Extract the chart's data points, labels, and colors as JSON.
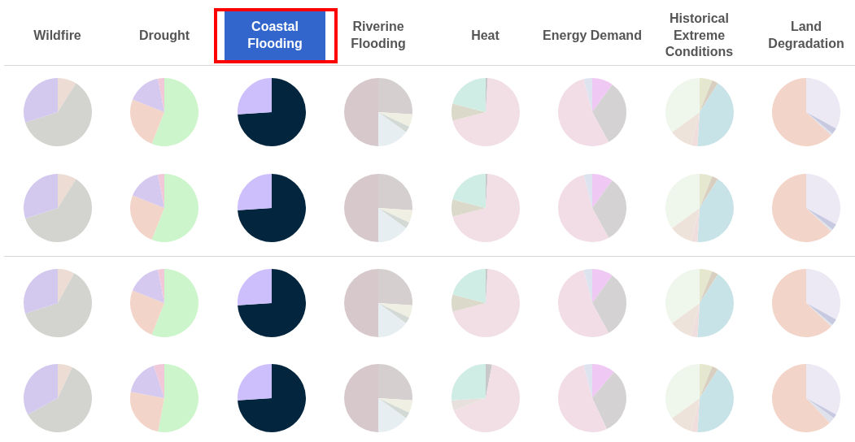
{
  "chart_data": [
    {
      "type": "pie",
      "title": "Wildfire",
      "categories": [
        null,
        null,
        null
      ],
      "values": [
        9,
        61,
        30
      ],
      "colors": [
        "#ecdcd4",
        "#d3d3cf",
        "#d3c9ef"
      ]
    },
    {
      "type": "pie",
      "title": "Drought",
      "categories": [
        null,
        null,
        null,
        null
      ],
      "values": [
        56,
        25,
        16,
        3
      ],
      "colors": [
        "#cdf5cb",
        "#f2d4c8",
        "#d6c9ef",
        "#f0c8d8"
      ]
    },
    {
      "type": "pie",
      "title": "Coastal Flooding",
      "categories": [
        null,
        null
      ],
      "values": [
        74,
        26
      ],
      "colors": [
        "#03263e",
        "#cdbefc"
      ]
    },
    {
      "type": "pie",
      "title": "Riverine Flooding",
      "categories": [
        null,
        null,
        null,
        null,
        null
      ],
      "values": [
        26,
        6,
        3,
        15,
        50
      ],
      "colors": [
        "#d5cfcf",
        "#f0efe3",
        "#d3d9d5",
        "#e6eef2",
        "#d7c8cc"
      ]
    },
    {
      "type": "pie",
      "title": "Heat",
      "categories": [
        null,
        null,
        null,
        null
      ],
      "values": [
        1,
        70,
        8,
        21
      ],
      "colors": [
        "#c8c8c8",
        "#f2dfe6",
        "#dbd9c9",
        "#d0ede5"
      ]
    },
    {
      "type": "pie",
      "title": "Energy Demand",
      "categories": [
        null,
        null,
        null,
        null
      ],
      "values": [
        10,
        32,
        54,
        4
      ],
      "colors": [
        "#f0c8f4",
        "#d4d2d3",
        "#f2dde6",
        "#dde4f0"
      ]
    },
    {
      "type": "pie",
      "title": "Historical Extreme Conditions",
      "categories": [
        null,
        null,
        null,
        null,
        null,
        null
      ],
      "values": [
        6,
        3,
        42,
        3,
        11,
        35
      ],
      "colors": [
        "#e5e7cf",
        "#d8cfc0",
        "#c8e3e7",
        "#f0dede",
        "#eee3da",
        "#eff6ec"
      ]
    },
    {
      "type": "pie",
      "title": "Land Degradation",
      "categories": [
        null,
        null,
        null,
        null
      ],
      "values": [
        33,
        3,
        1,
        63
      ],
      "colors": [
        "#ece8f4",
        "#c6c9e0",
        "#dfe2ea",
        "#f3d4c8"
      ]
    },
    {
      "type": "pie",
      "categories": [
        null,
        null,
        null
      ],
      "values": [
        9,
        61,
        30
      ],
      "colors": [
        "#ecdcd4",
        "#d3d3cf",
        "#d3c9ef"
      ]
    },
    {
      "type": "pie",
      "categories": [
        null,
        null,
        null,
        null
      ],
      "values": [
        56,
        25,
        16,
        3
      ],
      "colors": [
        "#cdf5cb",
        "#f2d4c8",
        "#d6c9ef",
        "#f0c8d8"
      ]
    },
    {
      "type": "pie",
      "categories": [
        null,
        null
      ],
      "values": [
        74,
        26
      ],
      "colors": [
        "#03263e",
        "#cdbefc"
      ]
    },
    {
      "type": "pie",
      "categories": [
        null,
        null,
        null,
        null,
        null
      ],
      "values": [
        26,
        6,
        3,
        15,
        50
      ],
      "colors": [
        "#d5cfcf",
        "#f0efe3",
        "#d3d9d5",
        "#e6eef2",
        "#d7c8cc"
      ]
    },
    {
      "type": "pie",
      "categories": [
        null,
        null,
        null,
        null
      ],
      "values": [
        1,
        70,
        8,
        21
      ],
      "colors": [
        "#c8c8c8",
        "#f2dfe6",
        "#dbd9c9",
        "#d0ede5"
      ]
    },
    {
      "type": "pie",
      "categories": [
        null,
        null,
        null,
        null
      ],
      "values": [
        10,
        32,
        54,
        4
      ],
      "colors": [
        "#f0c8f4",
        "#d4d2d3",
        "#f2dde6",
        "#dde4f0"
      ]
    },
    {
      "type": "pie",
      "categories": [
        null,
        null,
        null,
        null,
        null,
        null
      ],
      "values": [
        6,
        3,
        42,
        3,
        11,
        35
      ],
      "colors": [
        "#e5e7cf",
        "#d8cfc0",
        "#c8e3e7",
        "#f0dede",
        "#eee3da",
        "#eff6ec"
      ]
    },
    {
      "type": "pie",
      "categories": [
        null,
        null,
        null,
        null
      ],
      "values": [
        33,
        3,
        1,
        63
      ],
      "colors": [
        "#ece8f4",
        "#c6c9e0",
        "#dfe2ea",
        "#f3d4c8"
      ]
    },
    {
      "type": "pie",
      "categories": [
        null,
        null,
        null
      ],
      "values": [
        8,
        62,
        30
      ],
      "colors": [
        "#ecdcd4",
        "#d3d3cf",
        "#d3c9ef"
      ]
    },
    {
      "type": "pie",
      "categories": [
        null,
        null,
        null,
        null
      ],
      "values": [
        56,
        25,
        16,
        3
      ],
      "colors": [
        "#cdf5cb",
        "#f2d4c8",
        "#d6c9ef",
        "#f0c8d8"
      ]
    },
    {
      "type": "pie",
      "categories": [
        null,
        null
      ],
      "values": [
        74,
        26
      ],
      "colors": [
        "#03263e",
        "#cdbefc"
      ]
    },
    {
      "type": "pie",
      "categories": [
        null,
        null,
        null,
        null,
        null
      ],
      "values": [
        26,
        6,
        3,
        15,
        50
      ],
      "colors": [
        "#d5cfcf",
        "#f0efe3",
        "#d3d9d5",
        "#e6eef2",
        "#d7c8cc"
      ]
    },
    {
      "type": "pie",
      "categories": [
        null,
        null,
        null,
        null
      ],
      "values": [
        1,
        70,
        8,
        21
      ],
      "colors": [
        "#c8c8c8",
        "#f2dfe6",
        "#dbd9c9",
        "#d0ede5"
      ]
    },
    {
      "type": "pie",
      "categories": [
        null,
        null,
        null,
        null
      ],
      "values": [
        10,
        32,
        54,
        4
      ],
      "colors": [
        "#f0c8f4",
        "#d4d2d3",
        "#f2dde6",
        "#dde4f0"
      ]
    },
    {
      "type": "pie",
      "categories": [
        null,
        null,
        null,
        null,
        null,
        null
      ],
      "values": [
        6,
        3,
        42,
        3,
        11,
        35
      ],
      "colors": [
        "#e5e7cf",
        "#d8cfc0",
        "#c8e3e7",
        "#f0dede",
        "#eee3da",
        "#eff6ec"
      ]
    },
    {
      "type": "pie",
      "categories": [
        null,
        null,
        null,
        null
      ],
      "values": [
        33,
        3,
        1,
        63
      ],
      "colors": [
        "#ece8f4",
        "#c6c9e0",
        "#dfe2ea",
        "#f3d4c8"
      ]
    },
    {
      "type": "pie",
      "categories": [
        null,
        null,
        null
      ],
      "values": [
        7,
        60,
        33
      ],
      "colors": [
        "#ecdcd4",
        "#d3d3cf",
        "#d3c9ef"
      ]
    },
    {
      "type": "pie",
      "categories": [
        null,
        null,
        null,
        null
      ],
      "values": [
        53,
        25,
        17,
        5
      ],
      "colors": [
        "#cdf5cb",
        "#f2d4c8",
        "#d6c9ef",
        "#f0c8d8"
      ]
    },
    {
      "type": "pie",
      "categories": [
        null,
        null
      ],
      "values": [
        74,
        26
      ],
      "colors": [
        "#03263e",
        "#cdbefc"
      ]
    },
    {
      "type": "pie",
      "categories": [
        null,
        null,
        null,
        null,
        null
      ],
      "values": [
        26,
        6,
        3,
        15,
        50
      ],
      "colors": [
        "#d5cfcf",
        "#f0efe3",
        "#d3d9d5",
        "#e6eef2",
        "#d7c8cc"
      ]
    },
    {
      "type": "pie",
      "categories": [
        null,
        null,
        null,
        null
      ],
      "values": [
        3,
        66,
        5,
        26
      ],
      "colors": [
        "#c8c8c8",
        "#f2dfe6",
        "#e8e0dc",
        "#d0ede5"
      ]
    },
    {
      "type": "pie",
      "categories": [
        null,
        null,
        null,
        null
      ],
      "values": [
        11,
        32,
        53,
        4
      ],
      "colors": [
        "#f0c8f4",
        "#d4d2d3",
        "#f2dde6",
        "#dde4f0"
      ]
    },
    {
      "type": "pie",
      "categories": [
        null,
        null,
        null,
        null,
        null,
        null
      ],
      "values": [
        6,
        3,
        42,
        3,
        11,
        35
      ],
      "colors": [
        "#e5e7cf",
        "#d8cfc0",
        "#c8e3e7",
        "#f0dede",
        "#eee3da",
        "#eff6ec"
      ]
    },
    {
      "type": "pie",
      "categories": [
        null,
        null,
        null,
        null
      ],
      "values": [
        33,
        2,
        3,
        62
      ],
      "colors": [
        "#ece8f4",
        "#c6c9e0",
        "#dfe2ea",
        "#f3d4c8"
      ]
    }
  ]
}
